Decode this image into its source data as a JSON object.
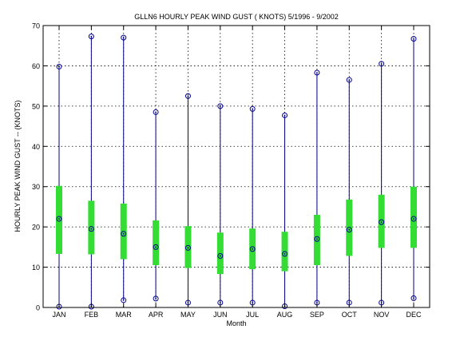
{
  "chart_data": {
    "type": "box",
    "title": "GLLN6  HOURLY PEAK WIND GUST ( KNOTS) 5/1996 - 9/2002",
    "xlabel": "Month",
    "ylabel": "HOURLY PEAK WIND GUST -- (KNOTS)",
    "categories": [
      "JAN",
      "FEB",
      "MAR",
      "APR",
      "MAY",
      "JUN",
      "JUL",
      "AUG",
      "SEP",
      "OCT",
      "NOV",
      "DEC"
    ],
    "ylim": [
      0,
      70
    ],
    "yticks": [
      "0",
      "10",
      "20",
      "30",
      "40",
      "50",
      "60",
      "70"
    ],
    "grid": true,
    "min": [
      0.2,
      0.2,
      1.8,
      2.2,
      1.2,
      1.2,
      1.2,
      0.3,
      1.2,
      1.2,
      1.2,
      2.3
    ],
    "max": [
      59.8,
      67.3,
      67.0,
      48.5,
      52.5,
      50.0,
      49.3,
      47.7,
      58.3,
      56.5,
      60.5,
      66.7
    ],
    "q1": [
      13.3,
      13.2,
      12.0,
      10.5,
      9.8,
      8.3,
      9.5,
      9.0,
      10.5,
      12.8,
      14.8,
      14.8
    ],
    "q3": [
      30.2,
      26.5,
      25.8,
      21.6,
      20.2,
      18.6,
      19.6,
      18.8,
      23.0,
      26.8,
      28.0,
      30.0
    ],
    "median": [
      22.0,
      19.5,
      18.3,
      15.0,
      14.8,
      12.8,
      14.5,
      13.3,
      17.0,
      19.3,
      21.2,
      22.0
    ],
    "colors": {
      "whisker": "#00008b",
      "box": "#33dd33",
      "marker": "#00008b",
      "grid": "#000000"
    }
  }
}
